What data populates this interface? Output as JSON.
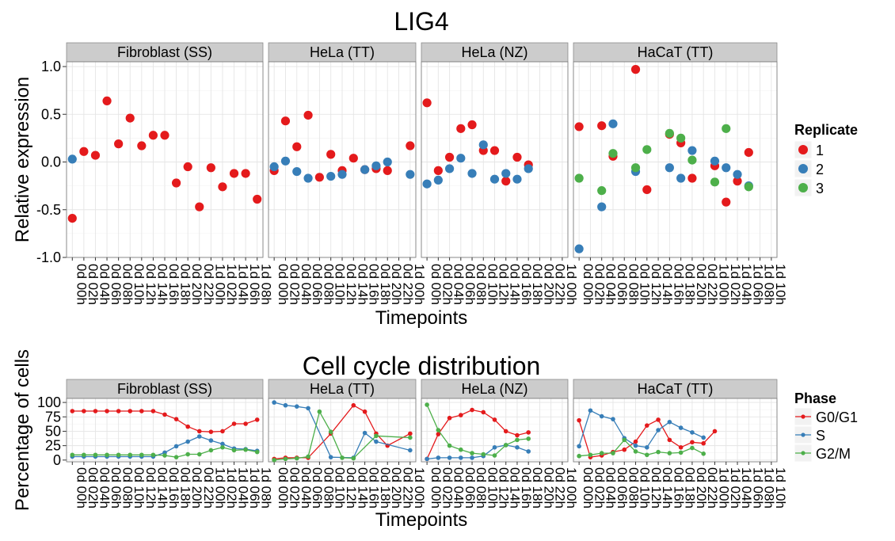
{
  "chart_data": [
    {
      "type": "scatter",
      "title": "LIG4",
      "xlabel": "Timepoints",
      "ylabel": "Relative expression",
      "ylim": [
        -1.0,
        1.05
      ],
      "yticks": [
        "1.0",
        "0.5",
        "0.0",
        "-0.5",
        "-1.0"
      ],
      "grid": true,
      "legend": {
        "title": "Replicate",
        "position": "right",
        "entries": [
          {
            "label": "1",
            "color": "#e41a1c"
          },
          {
            "label": "2",
            "color": "#377eb8"
          },
          {
            "label": "3",
            "color": "#4daf4a"
          }
        ]
      },
      "panels": [
        {
          "name": "Fibroblast (SS)",
          "categories": [
            "0d 00h",
            "0d 02h",
            "0d 04h",
            "0d 06h",
            "0d 08h",
            "0d 10h",
            "0d 12h",
            "0d 14h",
            "0d 16h",
            "0d 18h",
            "0d 20h",
            "0d 22h",
            "1d 00h",
            "1d 02h",
            "1d 04h",
            "1d 06h",
            "1d 08h"
          ],
          "series": [
            {
              "name": "1",
              "values": [
                -0.59,
                0.11,
                0.07,
                0.64,
                0.19,
                0.46,
                0.17,
                0.28,
                0.28,
                -0.22,
                -0.05,
                -0.47,
                -0.06,
                -0.26,
                -0.12,
                -0.12,
                -0.39
              ]
            },
            {
              "name": "2",
              "values": [
                0.03,
                null,
                null,
                null,
                null,
                null,
                null,
                null,
                null,
                null,
                null,
                null,
                null,
                null,
                null,
                null,
                null
              ]
            },
            {
              "name": "3",
              "values": [
                null,
                null,
                null,
                null,
                null,
                null,
                null,
                null,
                null,
                null,
                null,
                null,
                null,
                null,
                null,
                null,
                null
              ]
            }
          ]
        },
        {
          "name": "HeLa (TT)",
          "categories": [
            "0d 00h",
            "0d 02h",
            "0d 04h",
            "0d 06h",
            "0d 08h",
            "0d 10h",
            "0d 12h",
            "0d 14h",
            "0d 16h",
            "0d 18h",
            "0d 20h",
            "0d 22h",
            "1d 00h"
          ],
          "series": [
            {
              "name": "1",
              "values": [
                -0.09,
                0.43,
                0.16,
                0.49,
                -0.16,
                0.08,
                -0.09,
                0.04,
                -0.08,
                -0.07,
                -0.09,
                null,
                0.17
              ]
            },
            {
              "name": "2",
              "values": [
                -0.05,
                0.01,
                -0.1,
                -0.17,
                null,
                -0.15,
                -0.13,
                null,
                -0.08,
                -0.04,
                0.0,
                null,
                -0.13
              ]
            },
            {
              "name": "3",
              "values": [
                null,
                null,
                null,
                null,
                null,
                null,
                null,
                null,
                null,
                null,
                null,
                null,
                null
              ]
            }
          ]
        },
        {
          "name": "HeLa (NZ)",
          "categories": [
            "0d 00h",
            "0d 02h",
            "0d 04h",
            "0d 06h",
            "0d 08h",
            "0d 10h",
            "0d 12h",
            "0d 14h",
            "0d 16h",
            "0d 18h",
            "0d 20h",
            "0d 22h",
            "1d 00h"
          ],
          "series": [
            {
              "name": "1",
              "values": [
                0.62,
                -0.09,
                0.05,
                0.35,
                0.39,
                0.12,
                0.12,
                -0.2,
                0.05,
                -0.03,
                null,
                null,
                null
              ]
            },
            {
              "name": "2",
              "values": [
                -0.23,
                -0.19,
                -0.07,
                0.04,
                -0.12,
                0.18,
                -0.18,
                -0.12,
                -0.18,
                -0.07,
                null,
                null,
                null
              ]
            },
            {
              "name": "3",
              "values": [
                null,
                null,
                null,
                null,
                null,
                null,
                null,
                null,
                null,
                null,
                null,
                null,
                null
              ]
            }
          ]
        },
        {
          "name": "HaCaT (TT)",
          "categories": [
            "0d 00h",
            "0d 02h",
            "0d 04h",
            "0d 06h",
            "0d 08h",
            "0d 10h",
            "0d 12h",
            "0d 14h",
            "0d 16h",
            "0d 18h",
            "0d 20h",
            "0d 22h",
            "1d 00h",
            "1d 02h",
            "1d 04h",
            "1d 06h",
            "1d 08h",
            "1d 10h"
          ],
          "series": [
            {
              "name": "1",
              "values": [
                0.37,
                null,
                0.38,
                0.06,
                null,
                0.97,
                -0.29,
                null,
                0.29,
                0.2,
                -0.17,
                null,
                -0.04,
                -0.42,
                -0.2,
                0.1,
                null,
                null
              ]
            },
            {
              "name": "2",
              "values": [
                -0.91,
                null,
                -0.47,
                0.4,
                null,
                -0.1,
                null,
                null,
                -0.06,
                -0.17,
                0.12,
                null,
                0.01,
                -0.06,
                -0.13,
                -0.25,
                null,
                null
              ]
            },
            {
              "name": "3",
              "values": [
                -0.17,
                null,
                -0.3,
                0.09,
                null,
                -0.06,
                0.13,
                null,
                0.3,
                0.25,
                0.02,
                null,
                -0.21,
                0.35,
                null,
                -0.26,
                null,
                null
              ]
            }
          ]
        }
      ]
    },
    {
      "type": "line",
      "title": "Cell cycle distribution",
      "xlabel": "Timepoints",
      "ylabel": "Percentage of cells",
      "ylim": [
        -3,
        107
      ],
      "yticks": [
        "100",
        "75",
        "50",
        "25",
        "0"
      ],
      "grid": true,
      "legend": {
        "title": "Phase",
        "position": "right",
        "entries": [
          {
            "label": "G0/G1",
            "color": "#e41a1c"
          },
          {
            "label": "S",
            "color": "#377eb8"
          },
          {
            "label": "G2/M",
            "color": "#4daf4a"
          }
        ]
      },
      "panels": [
        {
          "name": "Fibroblast (SS)",
          "categories": [
            "0d 00h",
            "0d 02h",
            "0d 04h",
            "0d 06h",
            "0d 08h",
            "0d 10h",
            "0d 12h",
            "0d 14h",
            "0d 16h",
            "0d 18h",
            "0d 20h",
            "0d 22h",
            "1d 00h",
            "1d 02h",
            "1d 04h",
            "1d 06h",
            "1d 08h"
          ],
          "series": [
            {
              "name": "G0/G1",
              "values": [
                85,
                85,
                85,
                85,
                85,
                85,
                85,
                85,
                79,
                71,
                58,
                50,
                49,
                50,
                63,
                63,
                70
              ]
            },
            {
              "name": "S",
              "values": [
                6,
                6,
                6,
                6,
                6,
                6,
                6,
                6,
                13,
                24,
                32,
                41,
                34,
                28,
                20,
                19,
                16
              ]
            },
            {
              "name": "G2/M",
              "values": [
                9,
                9,
                9,
                9,
                9,
                9,
                9,
                9,
                8,
                5,
                10,
                10,
                17,
                22,
                17,
                18,
                14
              ]
            }
          ]
        },
        {
          "name": "HeLa (TT)",
          "categories": [
            "0d 00h",
            "0d 02h",
            "0d 04h",
            "0d 06h",
            "0d 08h",
            "0d 10h",
            "0d 12h",
            "0d 14h",
            "0d 16h",
            "0d 18h",
            "0d 20h",
            "0d 22h",
            "1d 00h"
          ],
          "series": [
            {
              "name": "G0/G1",
              "values": [
                2,
                4,
                4,
                4,
                null,
                46,
                null,
                95,
                84,
                46,
                25,
                null,
                46
              ]
            },
            {
              "name": "S",
              "values": [
                100,
                95,
                93,
                90,
                null,
                5,
                null,
                4,
                47,
                32,
                null,
                null,
                17
              ]
            },
            {
              "name": "G2/M",
              "values": [
                0,
                2,
                3,
                6,
                84,
                49,
                4,
                3,
                null,
                42,
                null,
                null,
                39
              ]
            }
          ]
        },
        {
          "name": "HeLa (NZ)",
          "categories": [
            "0d 00h",
            "0d 02h",
            "0d 04h",
            "0d 06h",
            "0d 08h",
            "0d 10h",
            "0d 12h",
            "0d 14h",
            "0d 16h",
            "0d 18h",
            "0d 20h",
            "0d 22h",
            "1d 00h"
          ],
          "series": [
            {
              "name": "G0/G1",
              "values": [
                2,
                45,
                73,
                78,
                87,
                83,
                70,
                50,
                43,
                48,
                null,
                null,
                null
              ]
            },
            {
              "name": "S",
              "values": [
                2,
                4,
                4,
                4,
                4,
                7,
                22,
                26,
                22,
                15,
                null,
                null,
                null
              ]
            },
            {
              "name": "G2/M",
              "values": [
                96,
                52,
                25,
                18,
                12,
                10,
                8,
                26,
                35,
                37,
                null,
                null,
                null
              ]
            }
          ]
        },
        {
          "name": "HaCaT (TT)",
          "categories": [
            "0d 00h",
            "0d 02h",
            "0d 04h",
            "0d 06h",
            "0d 08h",
            "0d 10h",
            "0d 12h",
            "0d 14h",
            "0d 16h",
            "0d 18h",
            "0d 20h",
            "0d 22h",
            "1d 00h",
            "1d 02h",
            "1d 04h",
            "1d 06h",
            "1d 08h",
            "1d 10h"
          ],
          "series": [
            {
              "name": "G0/G1",
              "values": [
                69,
                5,
                8,
                14,
                18,
                32,
                60,
                70,
                35,
                22,
                31,
                29,
                50,
                null,
                null,
                null,
                null,
                null
              ]
            },
            {
              "name": "S",
              "values": [
                24,
                86,
                76,
                71,
                38,
                25,
                22,
                52,
                66,
                56,
                48,
                39,
                null,
                null,
                null,
                null,
                null,
                null
              ]
            },
            {
              "name": "G2/M",
              "values": [
                7,
                9,
                12,
                12,
                35,
                15,
                9,
                14,
                12,
                13,
                21,
                11,
                null,
                null,
                null,
                null,
                null,
                null
              ]
            }
          ]
        }
      ]
    }
  ]
}
